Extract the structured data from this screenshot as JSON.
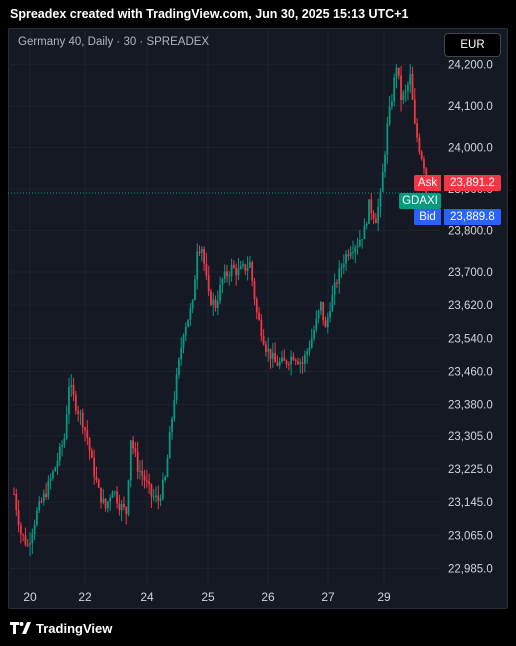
{
  "header": {
    "attribution": "Spreadex created with TradingView.com, Jun 30, 2025 15:13 UTC+1"
  },
  "legend": {
    "symbol_title": "Germany 40, Daily · 30 · SPREADEX"
  },
  "currency_button": {
    "label": "EUR"
  },
  "price_tags": {
    "ask_label": "Ask",
    "ask_value": "23,891.2",
    "symbol_label": "GDAXI",
    "bid_label": "Bid",
    "bid_value": "23,889.8"
  },
  "footer": {
    "brand": "TradingView"
  },
  "colors": {
    "up": "#089981",
    "down": "#f23645",
    "bid": "#2962ff",
    "background": "#151924"
  },
  "chart_data": {
    "type": "candlestick",
    "title": "Germany 40, Daily · 30 · SPREADEX",
    "xlabel": "",
    "ylabel": "",
    "ylim": [
      22950,
      24240
    ],
    "y_ticks": [
      22985,
      23065,
      23145,
      23225,
      23305,
      23380,
      23460,
      23540,
      23620,
      23700,
      23800,
      23900,
      24000,
      24100,
      24200
    ],
    "y_tick_labels": [
      "22,985.0",
      "23,065.0",
      "23,145.0",
      "23,225.0",
      "23,305.0",
      "23,380.0",
      "23,460.0",
      "23,540.0",
      "23,620.0",
      "23,700.0",
      "23,800.0",
      "23,900.0",
      "24,000.0",
      "24,100.0",
      "24,200.0"
    ],
    "x_ticks": [
      "20",
      "22",
      "24",
      "25",
      "26",
      "27",
      "29"
    ],
    "grid": true,
    "last_price": 23890.5,
    "ask": 23891.2,
    "bid": 23889.8,
    "path": [
      [
        0,
        23165
      ],
      [
        3,
        23070
      ],
      [
        6,
        23040
      ],
      [
        10,
        23120
      ],
      [
        14,
        23170
      ],
      [
        18,
        23230
      ],
      [
        22,
        23300
      ],
      [
        24,
        23430
      ],
      [
        27,
        23380
      ],
      [
        30,
        23340
      ],
      [
        32,
        23300
      ],
      [
        34,
        23240
      ],
      [
        37,
        23170
      ],
      [
        40,
        23130
      ],
      [
        43,
        23180
      ],
      [
        46,
        23140
      ],
      [
        49,
        23120
      ],
      [
        51,
        23300
      ],
      [
        54,
        23230
      ],
      [
        57,
        23200
      ],
      [
        60,
        23160
      ],
      [
        63,
        23150
      ],
      [
        66,
        23200
      ],
      [
        70,
        23400
      ],
      [
        74,
        23560
      ],
      [
        78,
        23620
      ],
      [
        80,
        23760
      ],
      [
        82,
        23760
      ],
      [
        85,
        23640
      ],
      [
        88,
        23620
      ],
      [
        91,
        23680
      ],
      [
        95,
        23710
      ],
      [
        98,
        23700
      ],
      [
        101,
        23710
      ],
      [
        103,
        23720
      ],
      [
        106,
        23600
      ],
      [
        110,
        23520
      ],
      [
        114,
        23480
      ],
      [
        118,
        23480
      ],
      [
        122,
        23500
      ],
      [
        126,
        23480
      ],
      [
        130,
        23540
      ],
      [
        134,
        23620
      ],
      [
        136,
        23560
      ],
      [
        138,
        23620
      ],
      [
        141,
        23680
      ],
      [
        144,
        23730
      ],
      [
        147,
        23760
      ],
      [
        150,
        23770
      ],
      [
        153,
        23800
      ],
      [
        155,
        23860
      ],
      [
        158,
        23830
      ],
      [
        160,
        23880
      ],
      [
        163,
        24050
      ],
      [
        165,
        24120
      ],
      [
        167,
        24200
      ],
      [
        169,
        24120
      ],
      [
        171,
        24130
      ],
      [
        173,
        24170
      ],
      [
        175,
        24050
      ],
      [
        177,
        24000
      ],
      [
        179,
        23960
      ],
      [
        180,
        23890
      ]
    ]
  }
}
